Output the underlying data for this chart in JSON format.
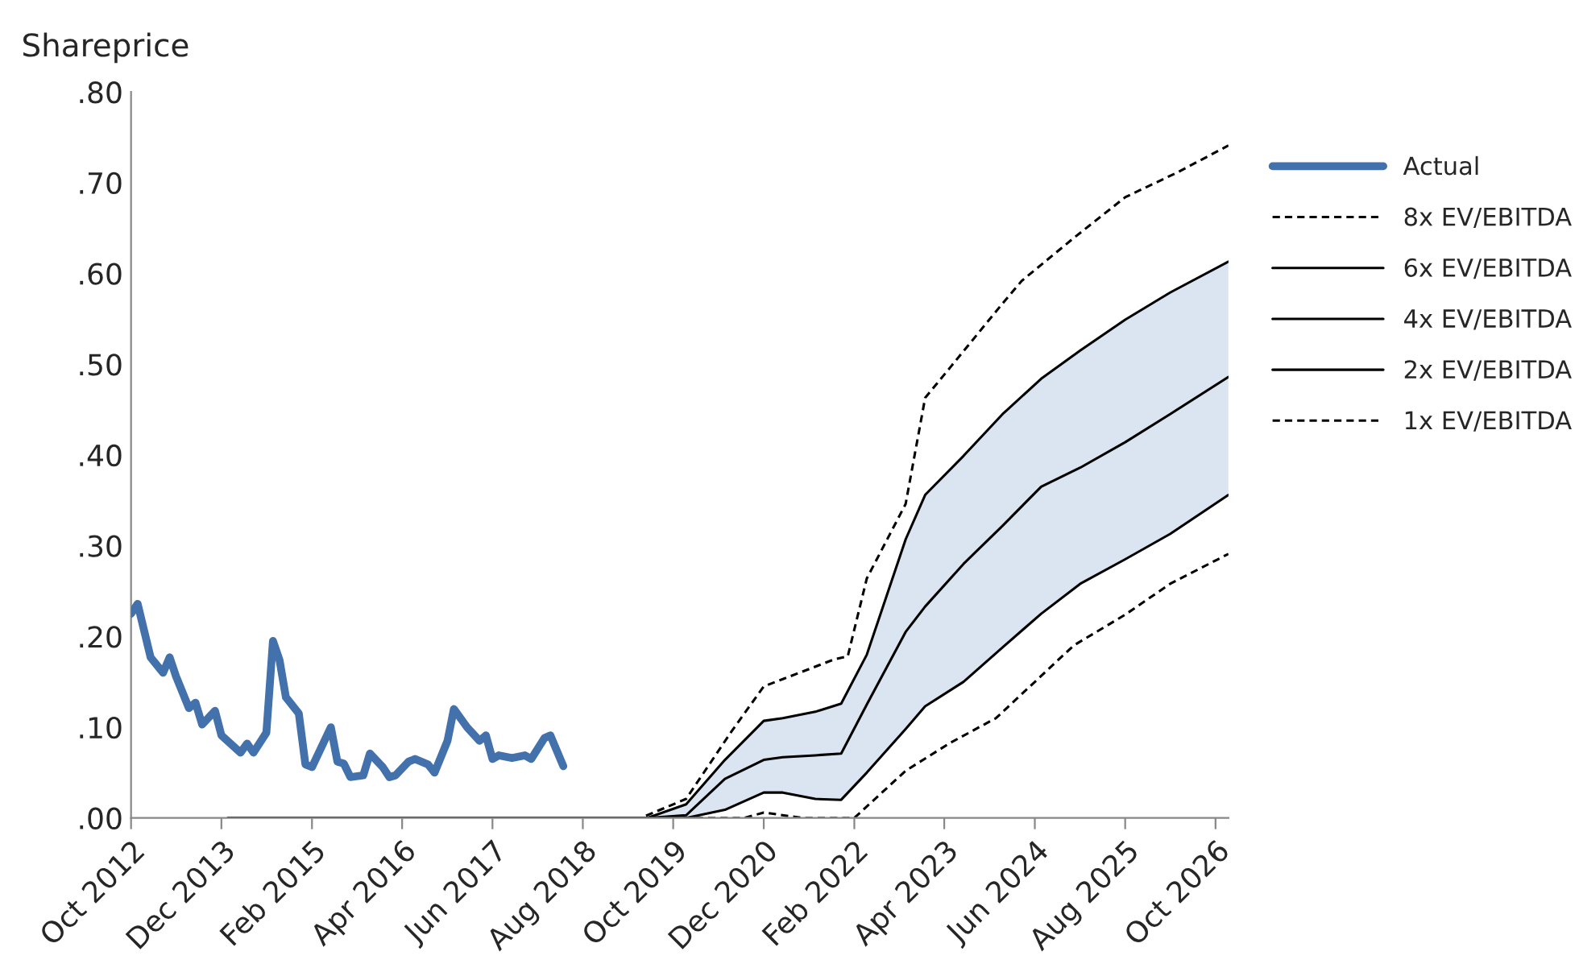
{
  "chart_data": {
    "type": "line",
    "ylabel": "Shareprice",
    "xlim": [
      "2012-10",
      "2026-12"
    ],
    "xticks": [
      {
        "value": "2012-10",
        "label": "Oct 2012"
      },
      {
        "value": "2013-12",
        "label": "Dec 2013"
      },
      {
        "value": "2015-02",
        "label": "Feb 2015"
      },
      {
        "value": "2016-04",
        "label": "Apr 2016"
      },
      {
        "value": "2017-06",
        "label": "Jun 2017"
      },
      {
        "value": "2018-08",
        "label": "Aug 2018"
      },
      {
        "value": "2019-10",
        "label": "Oct 2019"
      },
      {
        "value": "2020-12",
        "label": "Dec 2020"
      },
      {
        "value": "2022-02",
        "label": "Feb 2022"
      },
      {
        "value": "2023-04",
        "label": "Apr 2023"
      },
      {
        "value": "2024-06",
        "label": "Jun 2024"
      },
      {
        "value": "2025-08",
        "label": "Aug 2025"
      },
      {
        "value": "2026-10",
        "label": "Oct 2026"
      }
    ],
    "ylim": [
      0,
      0.8
    ],
    "yticks": [
      {
        "value": 0,
        "label": ".00"
      },
      {
        "value": 0.1,
        "label": ".10"
      },
      {
        "value": 0.2,
        "label": ".20"
      },
      {
        "value": 0.3,
        "label": ".30"
      },
      {
        "value": 0.4,
        "label": ".40"
      },
      {
        "value": 0.5,
        "label": ".50"
      },
      {
        "value": 0.6,
        "label": ".60"
      },
      {
        "value": 0.7,
        "label": ".70"
      },
      {
        "value": 0.8,
        "label": ".80"
      }
    ],
    "grid": false,
    "legend": "right",
    "marker": "none",
    "series": [
      {
        "name": "Actual",
        "color": "#4371ab",
        "line_style": "solid",
        "x": [
          "2012-10",
          "2012-11",
          "2013-01",
          "2013-03",
          "2013-04",
          "2013-05",
          "2013-07",
          "2013-08",
          "2013-09",
          "2013-11",
          "2013-12",
          "2014-03",
          "2014-04",
          "2014-05",
          "2014-07",
          "2014-08",
          "2014-09",
          "2014-10",
          "2014-12",
          "2015-01",
          "2015-02",
          "2015-05",
          "2015-06",
          "2015-07",
          "2015-08",
          "2015-10",
          "2015-11",
          "2016-01",
          "2016-02",
          "2016-03",
          "2016-05",
          "2016-06",
          "2016-08",
          "2016-09",
          "2016-11",
          "2016-12",
          "2017-02",
          "2017-04",
          "2017-05",
          "2017-06",
          "2017-07",
          "2017-09",
          "2017-11",
          "2017-12",
          "2018-02",
          "2018-03",
          "2018-05"
        ],
        "values": [
          0.225,
          0.236,
          0.177,
          0.16,
          0.177,
          0.156,
          0.121,
          0.127,
          0.103,
          0.118,
          0.091,
          0.072,
          0.082,
          0.072,
          0.094,
          0.195,
          0.174,
          0.133,
          0.115,
          0.059,
          0.056,
          0.1,
          0.062,
          0.06,
          0.045,
          0.047,
          0.071,
          0.056,
          0.045,
          0.047,
          0.062,
          0.065,
          0.059,
          0.05,
          0.085,
          0.12,
          0.1,
          0.085,
          0.091,
          0.065,
          0.069,
          0.066,
          0.069,
          0.065,
          0.088,
          0.091,
          0.057
        ]
      },
      {
        "name": "8x EV/EBITDA",
        "color": "#000000",
        "line_style": "dashed",
        "x": [
          "2014-01",
          "2019-05",
          "2019-12",
          "2020-07",
          "2020-12",
          "2021-03",
          "2021-11",
          "2022-01",
          "2022-04",
          "2022-10",
          "2023-01",
          "2023-05",
          "2024-01",
          "2024-04",
          "2024-12",
          "2025-08",
          "2026-04",
          "2026-12"
        ],
        "values": [
          0,
          0,
          0.021,
          0.095,
          0.145,
          0.153,
          0.175,
          0.178,
          0.264,
          0.346,
          0.463,
          0.497,
          0.567,
          0.592,
          0.639,
          0.684,
          0.711,
          0.741
        ]
      },
      {
        "name": "6x EV/EBITDA",
        "color": "#000000",
        "line_style": "solid",
        "x": [
          "2014-01",
          "2019-06",
          "2019-12",
          "2020-06",
          "2020-12",
          "2021-03",
          "2021-08",
          "2021-12",
          "2022-04",
          "2022-10",
          "2023-01",
          "2023-07",
          "2024-01",
          "2024-07",
          "2025-01",
          "2025-08",
          "2026-03",
          "2026-12"
        ],
        "values": [
          0,
          0,
          0.015,
          0.064,
          0.107,
          0.11,
          0.117,
          0.126,
          0.18,
          0.307,
          0.356,
          0.399,
          0.445,
          0.484,
          0.515,
          0.549,
          0.579,
          0.613
        ]
      },
      {
        "name": "4x EV/EBITDA",
        "color": "#000000",
        "line_style": "solid",
        "x": [
          "2014-01",
          "2019-06",
          "2019-12",
          "2020-06",
          "2020-12",
          "2021-03",
          "2021-08",
          "2021-12",
          "2022-04",
          "2022-10",
          "2023-01",
          "2023-07",
          "2024-01",
          "2024-07",
          "2025-01",
          "2025-08",
          "2026-03",
          "2026-12"
        ],
        "values": [
          0,
          0,
          0.003,
          0.043,
          0.064,
          0.067,
          0.069,
          0.071,
          0.125,
          0.205,
          0.233,
          0.28,
          0.322,
          0.365,
          0.386,
          0.414,
          0.445,
          0.486
        ],
        "lower": [
          0,
          0,
          0,
          0.009,
          0.028,
          0.028,
          0.021,
          0.02,
          0.05,
          0.098,
          0.123,
          0.15,
          0.188,
          0.225,
          0.258,
          0.285,
          0.313,
          0.356
        ],
        "upper": [
          0,
          0,
          0.015,
          0.064,
          0.107,
          0.11,
          0.117,
          0.126,
          0.18,
          0.307,
          0.356,
          0.399,
          0.445,
          0.484,
          0.515,
          0.549,
          0.579,
          0.613
        ]
      },
      {
        "name": "2x EV/EBITDA",
        "color": "#000000",
        "line_style": "solid",
        "x": [
          "2014-01",
          "2019-06",
          "2019-12",
          "2020-06",
          "2020-12",
          "2021-03",
          "2021-08",
          "2021-12",
          "2022-04",
          "2022-10",
          "2023-01",
          "2023-07",
          "2024-01",
          "2024-07",
          "2025-01",
          "2025-08",
          "2026-03",
          "2026-12"
        ],
        "values": [
          0,
          0,
          0,
          0.009,
          0.028,
          0.028,
          0.021,
          0.02,
          0.05,
          0.098,
          0.123,
          0.15,
          0.188,
          0.225,
          0.258,
          0.285,
          0.313,
          0.356
        ]
      },
      {
        "name": "1x EV/EBITDA",
        "color": "#000000",
        "line_style": "dashed",
        "x": [
          "2014-01",
          "2020-09",
          "2020-12",
          "2021-06",
          "2022-02",
          "2022-10",
          "2023-05",
          "2023-12",
          "2024-12",
          "2025-08",
          "2026-03",
          "2026-12"
        ],
        "values": [
          0,
          0,
          0.006,
          0,
          0,
          0.052,
          0.083,
          0.11,
          0.19,
          0.224,
          0.258,
          0.291
        ]
      }
    ]
  }
}
